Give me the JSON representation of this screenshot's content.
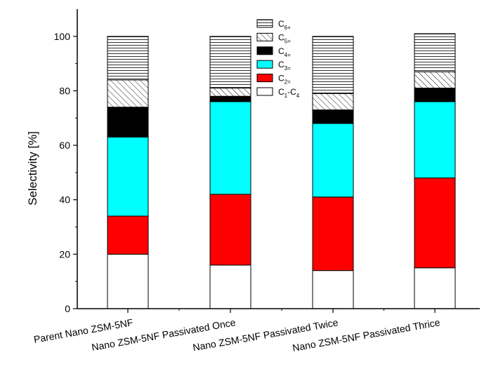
{
  "chart_data": {
    "type": "bar",
    "stacked": true,
    "ylabel": "Selectivity [%]",
    "xlabel": "",
    "ylim": [
      0,
      110
    ],
    "yticks": [
      0,
      20,
      40,
      60,
      80,
      100
    ],
    "grid": false,
    "legend_position": "top-center",
    "categories": [
      "Parent Nano ZSM-5NF",
      "Nano ZSM-5NF Passivated Once",
      "Nano ZSM-5NF Passivated Twice",
      "Nano ZSM-5NF Passivated Thrice"
    ],
    "series": [
      {
        "key": "c1c4",
        "name_main": "C",
        "name_sub": "1",
        "name_suffix": "-C",
        "name_sub2": "4",
        "color": "#ffffff",
        "pattern": "none",
        "values": [
          20,
          16,
          14,
          15
        ]
      },
      {
        "key": "c2",
        "name_main": "C",
        "name_sub": "2=",
        "name_suffix": "",
        "name_sub2": "",
        "color": "#ff0000",
        "pattern": "none",
        "values": [
          14,
          26,
          27,
          33
        ]
      },
      {
        "key": "c3",
        "name_main": "C",
        "name_sub": "3=",
        "name_suffix": "",
        "name_sub2": "",
        "color": "#00ffff",
        "pattern": "none",
        "values": [
          29,
          34,
          27,
          28
        ]
      },
      {
        "key": "c4",
        "name_main": "C",
        "name_sub": "4=",
        "name_suffix": "",
        "name_sub2": "",
        "color": "#000000",
        "pattern": "none",
        "values": [
          11,
          2,
          5,
          5
        ]
      },
      {
        "key": "c5",
        "name_main": "C",
        "name_sub": "5=",
        "name_suffix": "",
        "name_sub2": "",
        "color": "#ffffff",
        "pattern": "diagonal",
        "values": [
          10,
          3,
          6,
          6
        ]
      },
      {
        "key": "c6",
        "name_main": "C",
        "name_sub": "6+",
        "name_suffix": "",
        "name_sub2": "",
        "color": "#ffffff",
        "pattern": "horizontal",
        "values": [
          16,
          19,
          21,
          14
        ]
      }
    ]
  }
}
